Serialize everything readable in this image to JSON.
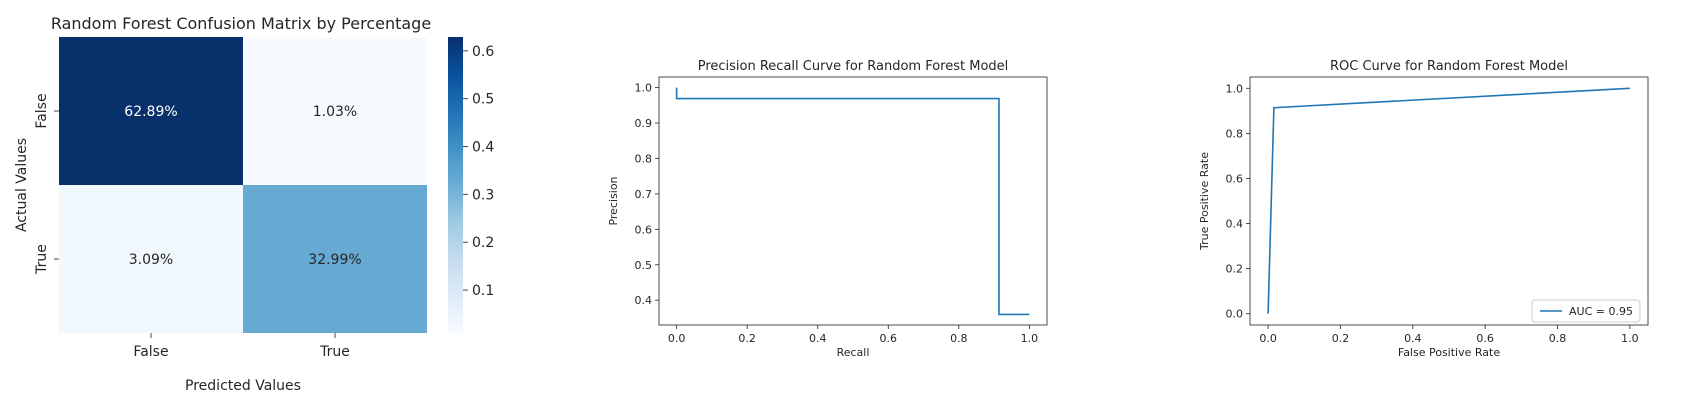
{
  "chart_data": [
    {
      "type": "heatmap",
      "title": "Random Forest Confusion Matrix by Percentage",
      "xlabel": "Predicted Values",
      "ylabel": "Actual Values",
      "x_categories": [
        "False",
        "True"
      ],
      "y_categories": [
        "False",
        "True"
      ],
      "values": [
        [
          0.6289,
          0.0103
        ],
        [
          0.0309,
          0.3299
        ]
      ],
      "annotations": [
        [
          "62.89%",
          "1.03%"
        ],
        [
          "3.09%",
          "32.99%"
        ]
      ],
      "colormap": "Blues",
      "colorbar": {
        "ticks": [
          0.1,
          0.2,
          0.3,
          0.4,
          0.5,
          0.6
        ],
        "tick_labels": [
          "0.1",
          "0.2",
          "0.3",
          "0.4",
          "0.5",
          "0.6"
        ],
        "range": [
          0.0103,
          0.6289
        ]
      }
    },
    {
      "type": "line",
      "title": "Precision Recall Curve for Random Forest Model",
      "xlabel": "Recall",
      "ylabel": "Precision",
      "xlim": [
        -0.05,
        1.05
      ],
      "ylim": [
        0.33,
        1.03
      ],
      "xticks": [
        "0.0",
        "0.2",
        "0.4",
        "0.6",
        "0.8",
        "1.0"
      ],
      "yticks": [
        "0.4",
        "0.5",
        "0.6",
        "0.7",
        "0.8",
        "0.9",
        "1.0"
      ],
      "series": [
        {
          "color": "#1f77b4",
          "x": [
            0.0,
            0.0,
            0.914,
            0.914,
            1.0
          ],
          "y": [
            1.0,
            0.969,
            0.969,
            0.36,
            0.36
          ]
        }
      ],
      "grid": false
    },
    {
      "type": "line",
      "title": "ROC Curve for Random Forest Model",
      "xlabel": "False Positive Rate",
      "ylabel": "True Positive Rate",
      "xlim": [
        -0.05,
        1.05
      ],
      "ylim": [
        -0.05,
        1.05
      ],
      "xticks": [
        "0.0",
        "0.2",
        "0.4",
        "0.6",
        "0.8",
        "1.0"
      ],
      "yticks": [
        "0.0",
        "0.2",
        "0.4",
        "0.6",
        "0.8",
        "1.0"
      ],
      "series": [
        {
          "name": "AUC = 0.95",
          "color": "#1f77b4",
          "x": [
            0.0,
            0.016,
            1.0
          ],
          "y": [
            0.0,
            0.914,
            1.0
          ]
        }
      ],
      "legend": "lower right",
      "grid": false
    }
  ]
}
